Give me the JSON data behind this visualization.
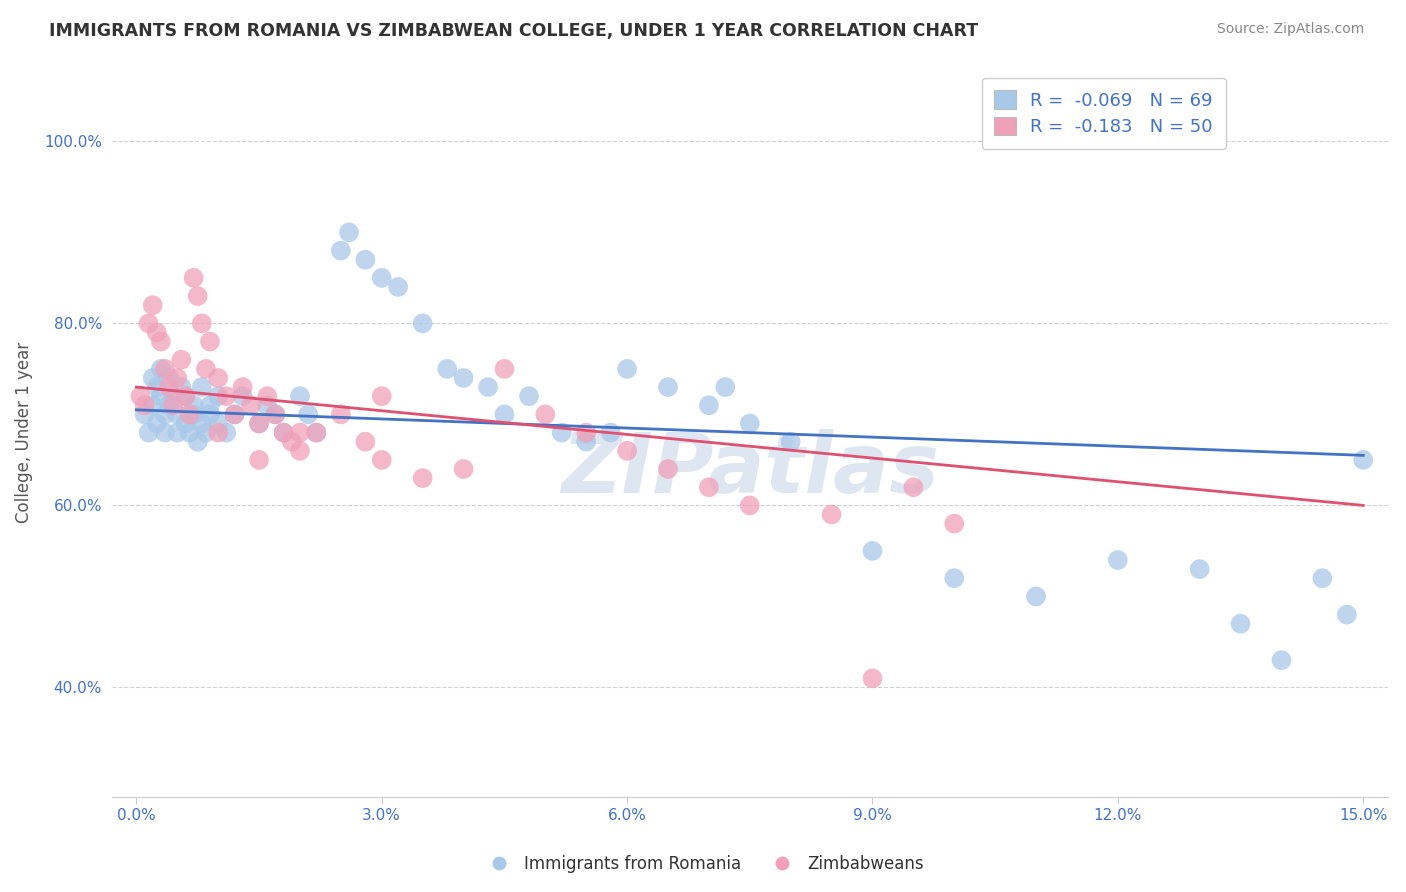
{
  "title": "IMMIGRANTS FROM ROMANIA VS ZIMBABWEAN COLLEGE, UNDER 1 YEAR CORRELATION CHART",
  "source": "Source: ZipAtlas.com",
  "ylabel": "College, Under 1 year",
  "legend_label1": "Immigrants from Romania",
  "legend_label2": "Zimbabweans",
  "r1": -0.069,
  "n1": 69,
  "r2": -0.183,
  "n2": 50,
  "color_blue": "#a8c8e8",
  "color_pink": "#f0a0b8",
  "line_blue": "#4472c4",
  "line_pink": "#e05070",
  "watermark": "ZIPatlas",
  "xlim": [
    0.0,
    15.0
  ],
  "yticks": [
    40.0,
    60.0,
    80.0,
    100.0
  ],
  "xticks": [
    0.0,
    3.0,
    6.0,
    9.0,
    12.0,
    15.0
  ],
  "blue_x": [
    0.1,
    0.15,
    0.2,
    0.2,
    0.25,
    0.25,
    0.3,
    0.3,
    0.35,
    0.35,
    0.4,
    0.4,
    0.45,
    0.5,
    0.5,
    0.55,
    0.6,
    0.6,
    0.65,
    0.7,
    0.7,
    0.75,
    0.8,
    0.8,
    0.85,
    0.9,
    0.9,
    1.0,
    1.0,
    1.1,
    1.2,
    1.3,
    1.5,
    1.6,
    1.7,
    1.8,
    2.0,
    2.1,
    2.2,
    2.5,
    2.6,
    2.8,
    3.0,
    3.2,
    3.5,
    3.8,
    4.0,
    4.3,
    4.8,
    5.2,
    5.5,
    6.0,
    6.5,
    7.0,
    7.5,
    8.0,
    9.0,
    10.0,
    11.0,
    12.0,
    13.0,
    13.5,
    14.0,
    14.5,
    14.8,
    15.0,
    4.5,
    5.8,
    7.2
  ],
  "blue_y": [
    70,
    68,
    74,
    71,
    73,
    69,
    75,
    72,
    68,
    70,
    74,
    71,
    72,
    68,
    70,
    73,
    72,
    69,
    68,
    71,
    70,
    67,
    73,
    69,
    68,
    71,
    70,
    72,
    69,
    68,
    70,
    72,
    69,
    71,
    70,
    68,
    72,
    70,
    68,
    88,
    90,
    87,
    85,
    84,
    80,
    75,
    74,
    73,
    72,
    68,
    67,
    75,
    73,
    71,
    69,
    67,
    55,
    52,
    50,
    54,
    53,
    47,
    43,
    52,
    48,
    65,
    70,
    68,
    73
  ],
  "pink_x": [
    0.05,
    0.1,
    0.15,
    0.2,
    0.25,
    0.3,
    0.35,
    0.4,
    0.45,
    0.5,
    0.55,
    0.6,
    0.65,
    0.7,
    0.75,
    0.8,
    0.85,
    0.9,
    1.0,
    1.1,
    1.2,
    1.3,
    1.4,
    1.5,
    1.6,
    1.7,
    1.8,
    1.9,
    2.0,
    2.2,
    2.5,
    2.8,
    3.0,
    3.5,
    4.0,
    4.5,
    5.0,
    5.5,
    6.0,
    6.5,
    7.0,
    7.5,
    8.5,
    9.0,
    9.5,
    10.0,
    1.0,
    1.5,
    2.0,
    3.0
  ],
  "pink_y": [
    72,
    71,
    80,
    82,
    79,
    78,
    75,
    73,
    71,
    74,
    76,
    72,
    70,
    85,
    83,
    80,
    75,
    78,
    74,
    72,
    70,
    73,
    71,
    69,
    72,
    70,
    68,
    67,
    66,
    68,
    70,
    67,
    65,
    63,
    64,
    75,
    70,
    68,
    66,
    64,
    62,
    60,
    59,
    41,
    62,
    58,
    68,
    65,
    68,
    72
  ],
  "blue_line_x0": 0.0,
  "blue_line_x1": 15.0,
  "blue_line_y0": 70.5,
  "blue_line_y1": 65.5,
  "pink_line_x0": 0.0,
  "pink_line_x1": 15.0,
  "pink_line_y0": 73.0,
  "pink_line_y1": 60.0
}
